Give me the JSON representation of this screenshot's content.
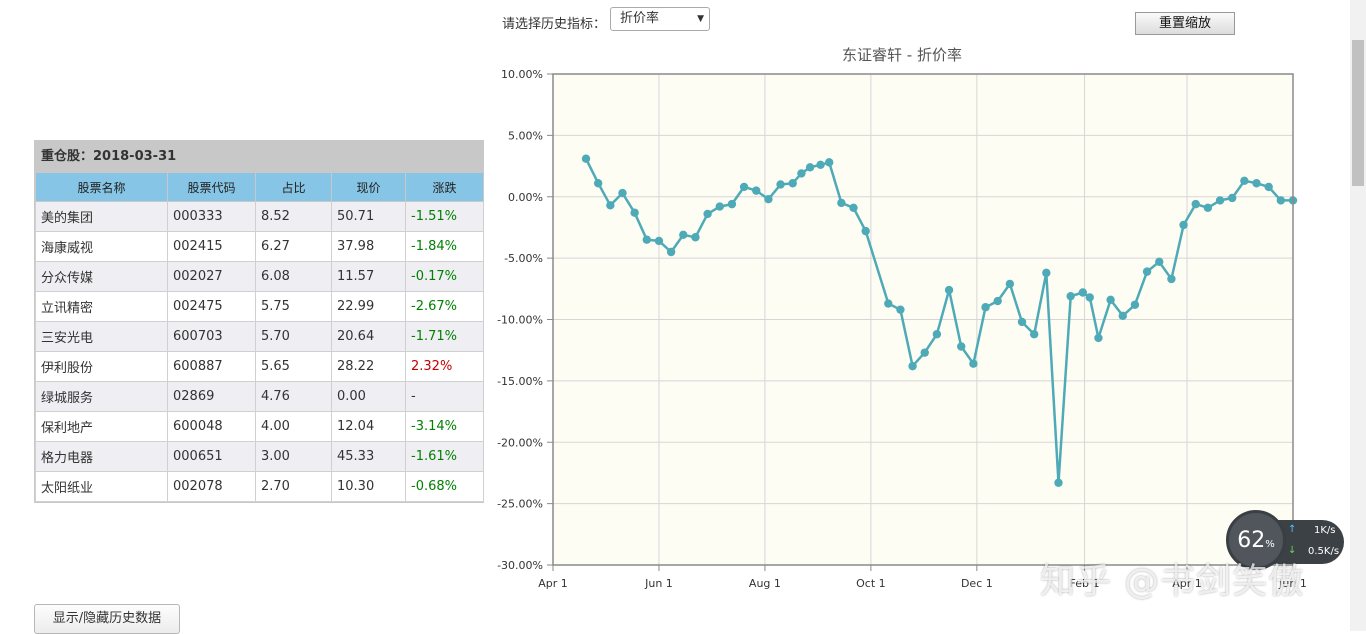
{
  "holdings": {
    "title": "重仓股：2018-03-31",
    "headers": [
      "股票名称",
      "股票代码",
      "占比",
      "现价",
      "涨跌"
    ],
    "rows": [
      {
        "name": "美的集团",
        "code": "000333",
        "weight": "8.52",
        "price": "50.71",
        "change": "-1.51%",
        "dir": "down"
      },
      {
        "name": "海康威视",
        "code": "002415",
        "weight": "6.27",
        "price": "37.98",
        "change": "-1.84%",
        "dir": "down"
      },
      {
        "name": "分众传媒",
        "code": "002027",
        "weight": "6.08",
        "price": "11.57",
        "change": "-0.17%",
        "dir": "down"
      },
      {
        "name": "立讯精密",
        "code": "002475",
        "weight": "5.75",
        "price": "22.99",
        "change": "-2.67%",
        "dir": "down"
      },
      {
        "name": "三安光电",
        "code": "600703",
        "weight": "5.70",
        "price": "20.64",
        "change": "-1.71%",
        "dir": "down"
      },
      {
        "name": "伊利股份",
        "code": "600887",
        "weight": "5.65",
        "price": "28.22",
        "change": "2.32%",
        "dir": "up"
      },
      {
        "name": "绿城服务",
        "code": "02869",
        "weight": "4.76",
        "price": "0.00",
        "change": "-",
        "dir": "flat"
      },
      {
        "name": "保利地产",
        "code": "600048",
        "weight": "4.00",
        "price": "12.04",
        "change": "-3.14%",
        "dir": "down"
      },
      {
        "name": "格力电器",
        "code": "000651",
        "weight": "3.00",
        "price": "45.33",
        "change": "-1.61%",
        "dir": "down"
      },
      {
        "name": "太阳纸业",
        "code": "002078",
        "weight": "2.70",
        "price": "10.30",
        "change": "-0.68%",
        "dir": "down"
      }
    ]
  },
  "toolbar": {
    "indicator_label": "请选择历史指标：",
    "indicator_selected": "折价率",
    "reset_label": "重置缩放",
    "toggle_history_label": "显示/隐藏历史数据"
  },
  "speed_widget": {
    "percent": "62",
    "percent_unit": "%",
    "upload": "1",
    "download": "0.5",
    "unit": "K/s"
  },
  "watermark": "知乎 @书剑笑傲",
  "colors": {
    "line": "#4eaab7",
    "plot_bg": "#fefdf4",
    "header_blue": "#86c5e6",
    "up": "#c40000",
    "down": "#008000"
  },
  "chart_data": {
    "type": "line",
    "title": "东证睿轩 - 折价率",
    "xlabel": "",
    "ylabel": "",
    "x_ticks": [
      "Apr 1",
      "Jun 1",
      "Aug 1",
      "Oct 1",
      "Dec 1",
      "Feb 1",
      "Apr 1",
      "Jun 1"
    ],
    "x_tick_days": [
      0,
      61,
      122,
      183,
      244,
      306,
      365,
      426
    ],
    "x_range_days": [
      0,
      426
    ],
    "y_ticks": [
      "10.00%",
      "5.00%",
      "0.00%",
      "-5.00%",
      "-10.00%",
      "-15.00%",
      "-20.00%",
      "-25.00%",
      "-30.00%"
    ],
    "ylim": [
      -30,
      10
    ],
    "grid": true,
    "series": [
      {
        "x_days": [
          19,
          26,
          33,
          40,
          47,
          54,
          61,
          68,
          75,
          82,
          89,
          96,
          103,
          110,
          117,
          124,
          131,
          138,
          143,
          148,
          154,
          159,
          166,
          173,
          180,
          193,
          200,
          207,
          214,
          221,
          228,
          235,
          242,
          249,
          256,
          263,
          270,
          277,
          284,
          291,
          298,
          305,
          309,
          314,
          321,
          328,
          335,
          342,
          349,
          356,
          363,
          370,
          377,
          384,
          391,
          398,
          405,
          412,
          419,
          426
        ],
        "values": [
          3.1,
          1.1,
          -0.7,
          0.3,
          -1.3,
          -3.5,
          -3.6,
          -4.5,
          -3.1,
          -3.3,
          -1.4,
          -0.8,
          -0.6,
          0.8,
          0.5,
          -0.2,
          1.0,
          1.1,
          1.9,
          2.4,
          2.6,
          2.8,
          -0.5,
          -0.9,
          -2.8,
          -8.7,
          -9.2,
          -13.8,
          -12.7,
          -11.2,
          -7.6,
          -12.2,
          -13.6,
          -9.0,
          -8.5,
          -7.1,
          -10.2,
          -11.2,
          -6.2,
          -23.3,
          -8.1,
          -7.8,
          -8.2,
          -11.5,
          -8.4,
          -9.7,
          -8.8,
          -6.1,
          -5.3,
          -6.7,
          -2.3,
          -0.6,
          -0.9,
          -0.3,
          -0.1,
          1.3,
          1.1,
          0.8,
          -0.3,
          -0.3
        ]
      }
    ]
  }
}
